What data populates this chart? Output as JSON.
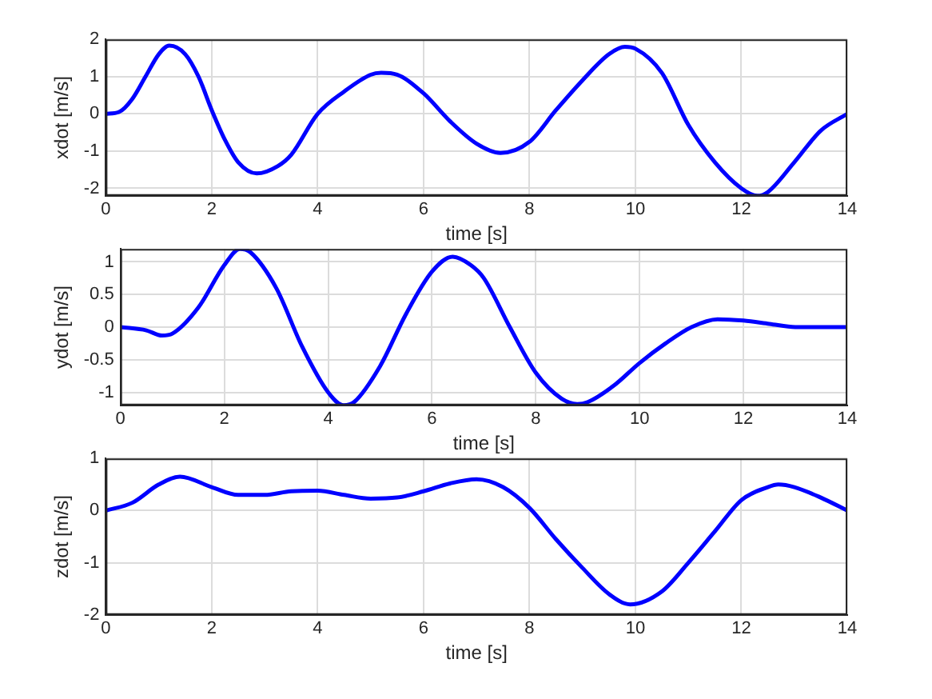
{
  "chart_data": [
    {
      "type": "line",
      "xlabel": "time [s]",
      "ylabel": "xdot [m/s]",
      "xlim": [
        0,
        14
      ],
      "xticks": [
        0,
        2,
        4,
        6,
        8,
        10,
        12,
        14
      ],
      "ylim": [
        -2.2,
        2
      ],
      "yticks": [
        -2,
        -1,
        0,
        1,
        2
      ],
      "grid": true,
      "x": [
        0,
        0.25,
        0.5,
        0.75,
        1.0,
        1.2,
        1.5,
        1.75,
        2.0,
        2.25,
        2.5,
        2.85,
        3.25,
        3.5,
        4.0,
        4.5,
        5.0,
        5.2,
        5.5,
        6.0,
        6.5,
        7.0,
        7.45,
        8.0,
        8.5,
        9.0,
        9.5,
        9.8,
        10.0,
        10.5,
        11.0,
        11.5,
        12.0,
        12.3,
        12.5,
        13.0,
        13.5,
        14
      ],
      "series": [
        {
          "color": "#0000ff",
          "values": [
            0,
            0.05,
            0.4,
            1.0,
            1.6,
            1.83,
            1.6,
            1.0,
            0.1,
            -0.7,
            -1.3,
            -1.6,
            -1.4,
            -1.1,
            0.0,
            0.6,
            1.05,
            1.1,
            1.05,
            0.55,
            -0.2,
            -0.8,
            -1.05,
            -0.75,
            0.1,
            0.9,
            1.6,
            1.8,
            1.75,
            1.1,
            -0.3,
            -1.3,
            -2.0,
            -2.2,
            -2.1,
            -1.3,
            -0.45,
            0
          ]
        }
      ]
    },
    {
      "type": "line",
      "xlabel": "time [s]",
      "ylabel": "ydot [m/s]",
      "xlim": [
        0,
        14
      ],
      "xticks": [
        0,
        2,
        4,
        6,
        8,
        10,
        12,
        14
      ],
      "ylim": [
        -1.2,
        1.2
      ],
      "yticks": [
        -1,
        -0.5,
        0,
        0.5,
        1
      ],
      "grid": true,
      "x": [
        0,
        0.5,
        0.8,
        1.0,
        1.5,
        2.0,
        2.3,
        2.5,
        3.0,
        3.5,
        4.0,
        4.3,
        4.5,
        5.0,
        5.5,
        6.0,
        6.4,
        6.75,
        7.0,
        7.5,
        8.0,
        8.5,
        8.8,
        9.0,
        9.5,
        10.0,
        10.5,
        11.0,
        11.5,
        12.0,
        12.5,
        13.0,
        14
      ],
      "series": [
        {
          "color": "#0000ff",
          "values": [
            0,
            -0.05,
            -0.13,
            -0.1,
            0.3,
            0.95,
            1.2,
            1.15,
            0.6,
            -0.3,
            -1.0,
            -1.2,
            -1.15,
            -0.6,
            0.2,
            0.85,
            1.08,
            0.95,
            0.75,
            0.0,
            -0.7,
            -1.1,
            -1.18,
            -1.15,
            -0.9,
            -0.55,
            -0.25,
            0.0,
            0.12,
            0.1,
            0.05,
            0.0,
            0
          ]
        }
      ]
    },
    {
      "type": "line",
      "xlabel": "time [s]",
      "ylabel": "zdot [m/s]",
      "xlim": [
        0,
        14
      ],
      "xticks": [
        0,
        2,
        4,
        6,
        8,
        10,
        12,
        14
      ],
      "ylim": [
        -2,
        1
      ],
      "yticks": [
        -2,
        -1,
        0,
        1
      ],
      "grid": true,
      "x": [
        0,
        0.5,
        1.0,
        1.4,
        2.0,
        2.5,
        3.0,
        3.5,
        4.0,
        4.5,
        5.0,
        5.5,
        6.0,
        6.5,
        7.0,
        7.5,
        8.0,
        8.5,
        9.0,
        9.5,
        9.9,
        10.5,
        11.0,
        11.5,
        12.0,
        12.5,
        12.7,
        13.0,
        13.5,
        14
      ],
      "series": [
        {
          "color": "#0000ff",
          "values": [
            0,
            0.15,
            0.5,
            0.65,
            0.45,
            0.3,
            0.3,
            0.37,
            0.38,
            0.3,
            0.23,
            0.25,
            0.37,
            0.52,
            0.6,
            0.45,
            0.05,
            -0.55,
            -1.1,
            -1.6,
            -1.8,
            -1.55,
            -1.0,
            -0.4,
            0.2,
            0.45,
            0.5,
            0.45,
            0.25,
            0
          ]
        }
      ]
    }
  ]
}
